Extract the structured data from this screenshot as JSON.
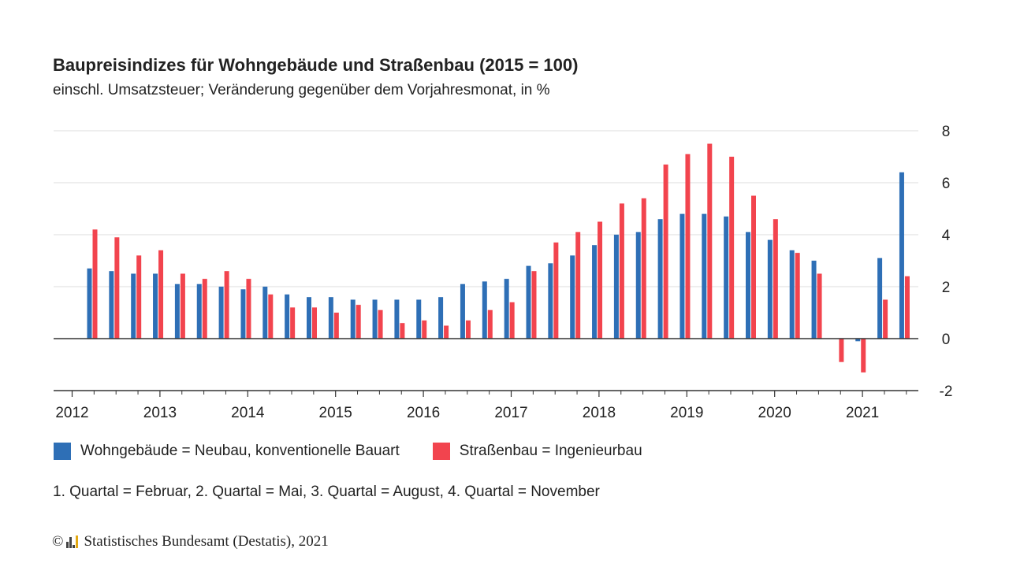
{
  "colors": {
    "wohn": "#2e6fb6",
    "strasse": "#f2444e",
    "grid": "#dddddd",
    "axis": "#333333"
  },
  "note": "1. Quartal = Februar, 2. Quartal = Mai, 3. Quartal = August, 4. Quartal = November",
  "footer": {
    "copyright": "©",
    "logo_icon": "destatis-logo-icon",
    "text": "Statistisches Bundesamt (Destatis), 2021"
  },
  "chart_data": {
    "type": "bar",
    "title": "Baupreisindizes für Wohngebäude und Straßenbau (2015 = 100)",
    "subtitle": "einschl. Umsatzsteuer; Veränderung gegenüber dem Vorjahresmonat, in %",
    "xlabel": "",
    "ylabel": "",
    "ylim": [
      -2,
      8
    ],
    "yticks": [
      8,
      6,
      4,
      2,
      0,
      -2
    ],
    "grid": true,
    "legend_position": "bottom",
    "year_labels": [
      "2012",
      "2013",
      "2014",
      "2015",
      "2016",
      "2017",
      "2018",
      "2019",
      "2020",
      "2021"
    ],
    "categories": [
      "2012 Q2",
      "2012 Q3",
      "2012 Q4",
      "2013 Q1",
      "2013 Q2",
      "2013 Q3",
      "2013 Q4",
      "2014 Q1",
      "2014 Q2",
      "2014 Q3",
      "2014 Q4",
      "2015 Q1",
      "2015 Q2",
      "2015 Q3",
      "2015 Q4",
      "2016 Q1",
      "2016 Q2",
      "2016 Q3",
      "2016 Q4",
      "2017 Q1",
      "2017 Q2",
      "2017 Q3",
      "2017 Q4",
      "2018 Q1",
      "2018 Q2",
      "2018 Q3",
      "2018 Q4",
      "2019 Q1",
      "2019 Q2",
      "2019 Q3",
      "2019 Q4",
      "2020 Q1",
      "2020 Q2",
      "2020 Q3",
      "2020 Q4",
      "2021 Q1",
      "2021 Q2",
      "2021 Q3"
    ],
    "series": [
      {
        "name": "Wohngebäude = Neubau, konventionelle Bauart",
        "values": [
          2.7,
          2.6,
          2.5,
          2.5,
          2.1,
          2.1,
          2.0,
          1.9,
          2.0,
          1.7,
          1.6,
          1.6,
          1.5,
          1.5,
          1.5,
          1.5,
          1.6,
          2.1,
          2.2,
          2.3,
          2.8,
          2.9,
          3.2,
          3.6,
          4.0,
          4.1,
          4.6,
          4.8,
          4.8,
          4.7,
          4.1,
          3.8,
          3.4,
          3.0,
          0.0,
          -0.1,
          3.1,
          6.4
        ]
      },
      {
        "name": "Straßenbau = Ingenieurbau",
        "values": [
          4.2,
          3.9,
          3.2,
          3.4,
          2.5,
          2.3,
          2.6,
          2.3,
          1.7,
          1.2,
          1.2,
          1.0,
          1.3,
          1.1,
          0.6,
          0.7,
          0.5,
          0.7,
          1.1,
          1.4,
          2.6,
          3.7,
          4.1,
          4.5,
          5.2,
          5.4,
          6.7,
          7.1,
          7.5,
          7.0,
          5.5,
          4.6,
          3.3,
          2.5,
          -0.9,
          -1.3,
          1.5,
          2.4
        ]
      }
    ]
  }
}
